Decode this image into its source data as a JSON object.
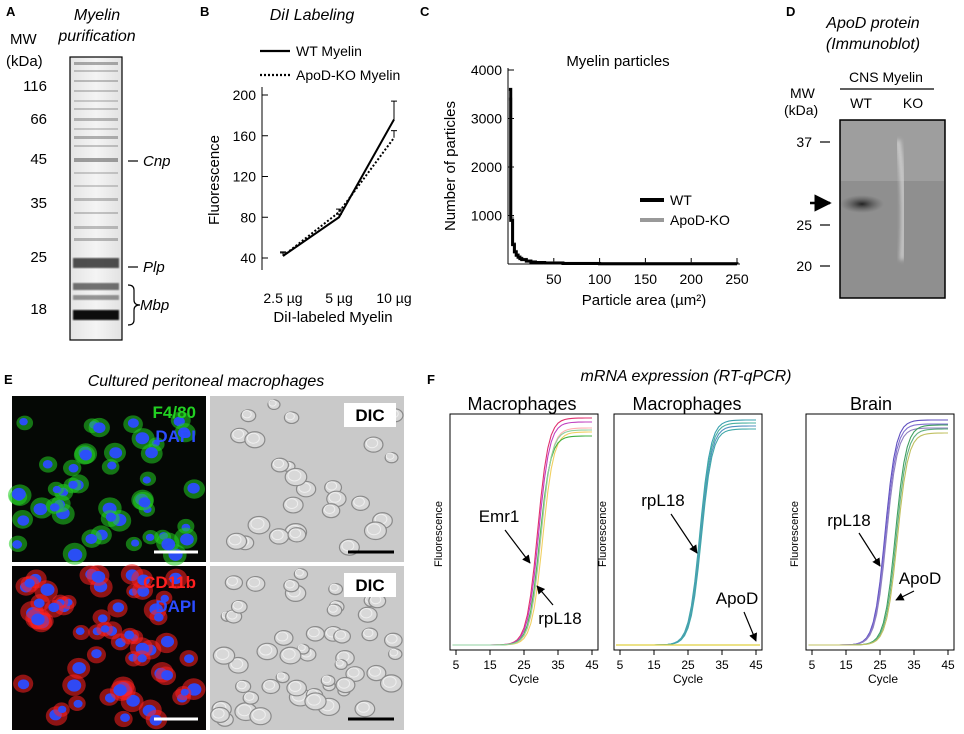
{
  "panels": {
    "A": {
      "letter": "A",
      "title_line1": "Myelin",
      "title_line2": "purification",
      "mw_label": "MW",
      "unit_label": "(kDa)",
      "markers": [
        {
          "label": "116",
          "band": "marker-116"
        },
        {
          "label": "66",
          "band": "marker-66"
        },
        {
          "label": "45",
          "band": "marker-45"
        },
        {
          "label": "35",
          "band": "marker-35"
        },
        {
          "label": "25",
          "band": "marker-25"
        },
        {
          "label": "18",
          "band": "marker-18"
        }
      ],
      "bands": {
        "cnp": "Cnp",
        "plp": "Plp",
        "mbp": "Mbp"
      }
    },
    "B": {
      "letter": "B",
      "title": "DiI Labeling",
      "legend": [
        "WT Myelin",
        "ApoD-KO Myelin"
      ],
      "chart_data": {
        "type": "line",
        "title": "DiI Labeling",
        "xlabel": "DiI-labeled Myelin",
        "ylabel": "Fluorescence",
        "categories": [
          "2.5 µg",
          "5 µg",
          "10 µg"
        ],
        "yticks": [
          "40",
          "80",
          "120",
          "160",
          "200"
        ],
        "ylim": [
          25,
          205
        ],
        "series": [
          {
            "name": "WT Myelin",
            "values": [
              42,
              80,
              176
            ],
            "errors": [
              4,
              3,
              18
            ],
            "style": "solid"
          },
          {
            "name": "ApoD-KO Myelin",
            "values": [
              42,
              85,
              158
            ],
            "errors": [
              3,
              3,
              7
            ],
            "style": "dotted"
          }
        ]
      }
    },
    "C": {
      "letter": "C",
      "title": "Myelin particles",
      "legend": [
        "WT",
        "ApoD-KO"
      ],
      "chart_data": {
        "type": "line",
        "title": "Myelin particles",
        "xlabel": "Particle area (µm²)",
        "ylabel": "Number of particles",
        "xticks": [
          "50",
          "100",
          "150",
          "200",
          "250"
        ],
        "yticks": [
          "1000",
          "2000",
          "3000",
          "4000"
        ],
        "xlim": [
          0,
          250
        ],
        "ylim": [
          0,
          4000
        ],
        "series": [
          {
            "name": "WT",
            "color": "#000000",
            "x": [
              1,
              3,
              5,
              7,
              9,
              11,
              13,
              15,
              20,
              25,
              30,
              40,
              60,
              100,
              250
            ],
            "y": [
              3600,
              900,
              400,
              250,
              180,
              140,
              110,
              90,
              60,
              40,
              30,
              20,
              10,
              5,
              2
            ]
          },
          {
            "name": "ApoD-KO",
            "color": "#999999",
            "x": [
              1,
              3,
              5,
              7,
              9,
              11,
              13,
              15,
              20,
              25,
              30,
              40,
              60,
              100,
              250
            ],
            "y": [
              3400,
              950,
              420,
              260,
              190,
              150,
              120,
              95,
              65,
              45,
              32,
              22,
              12,
              6,
              3
            ]
          }
        ]
      }
    },
    "D": {
      "letter": "D",
      "title_line1": "ApoD protein",
      "title_line2": "(Immunoblot)",
      "mw_label": "MW",
      "unit_label": "(kDa)",
      "header": "CNS Myelin",
      "lanes": [
        "WT",
        "KO"
      ],
      "markers": [
        "37",
        "25",
        "20"
      ]
    },
    "E": {
      "letter": "E",
      "title": "Cultured peritoneal macrophages",
      "top_labels": [
        "F4/80",
        "DAPI"
      ],
      "bottom_labels": [
        "CD11b",
        "DAPI"
      ],
      "dic_label": "DIC",
      "colors": {
        "f480": "#22d022",
        "dapi": "#2b4cff",
        "cd11b": "#ff2020"
      }
    },
    "F": {
      "letter": "F",
      "title": "mRNA expression (RT-qPCR)",
      "axis_ticks": [
        "5",
        "15",
        "25",
        "35",
        "45"
      ],
      "xlabel": "Cycle",
      "ylabel": "Fluorescence",
      "plots": [
        {
          "title": "Macrophages",
          "labels": [
            "Emr1",
            "rpL18"
          ]
        },
        {
          "title": "Macrophages",
          "labels": [
            "rpL18",
            "ApoD"
          ]
        },
        {
          "title": "Brain",
          "labels": [
            "rpL18",
            "ApoD"
          ]
        }
      ]
    }
  }
}
